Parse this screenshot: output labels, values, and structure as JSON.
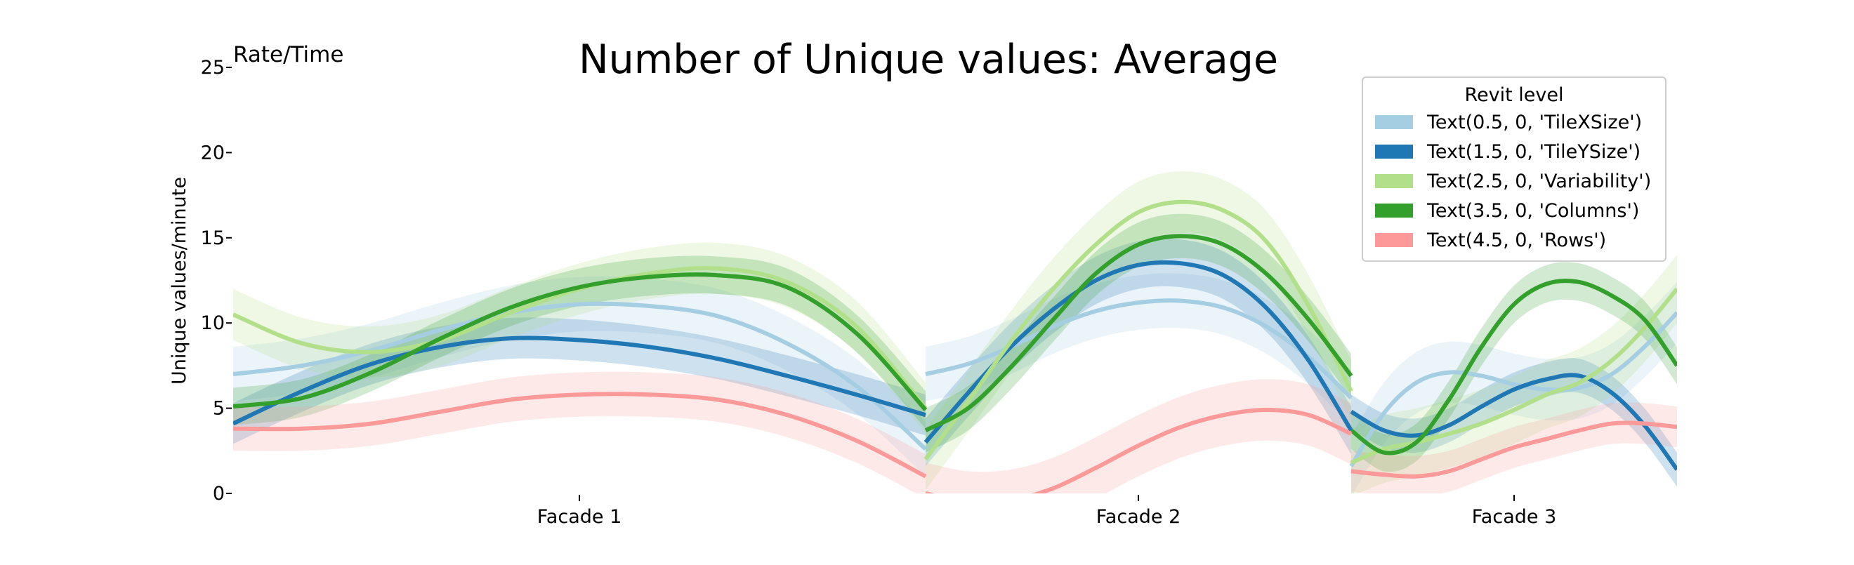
{
  "chart_data": {
    "type": "line",
    "title": "Number of Unique values: Average",
    "corner_label": "Rate/Time",
    "ylabel": "Unique values/minute",
    "xlabel": "",
    "ylim": [
      0,
      25
    ],
    "yticks": [
      0,
      5,
      10,
      15,
      20,
      25
    ],
    "segments": [
      {
        "label": "Facade 1",
        "x_range": [
          0,
          1
        ]
      },
      {
        "label": "Facade 2",
        "x_range": [
          1,
          2
        ]
      },
      {
        "label": "Facade 3",
        "x_range": [
          2,
          3
        ]
      }
    ],
    "legend": {
      "title": "Revit level",
      "placement": "top-right"
    },
    "grid": false,
    "series": [
      {
        "name": "Text(0.5, 0, 'TileXSize')",
        "color": "#a6cee3",
        "segments": [
          {
            "x": [
              0,
              0.1,
              0.2,
              0.3,
              0.4,
              0.5,
              0.6,
              0.7,
              0.8,
              0.9,
              1.0
            ],
            "y": [
              7.0,
              7.5,
              8.4,
              9.6,
              10.6,
              11.1,
              11.0,
              10.4,
              8.8,
              6.3,
              2.6
            ],
            "band": 1.6
          },
          {
            "x": [
              0,
              0.1,
              0.2,
              0.3,
              0.4,
              0.5,
              0.6,
              0.7,
              0.8,
              0.9,
              1.0
            ],
            "y": [
              7.0,
              7.6,
              8.6,
              9.8,
              10.7,
              11.2,
              11.3,
              10.9,
              9.8,
              8.0,
              5.6
            ],
            "band": 1.6
          },
          {
            "x": [
              0,
              0.1,
              0.2,
              0.3,
              0.4,
              0.5,
              0.6,
              0.7,
              0.8,
              0.9,
              1.0
            ],
            "y": [
              1.6,
              4.7,
              6.5,
              7.1,
              6.9,
              6.4,
              6.1,
              6.2,
              7.0,
              8.6,
              10.6
            ],
            "band": 1.8
          }
        ]
      },
      {
        "name": "Text(1.5, 0, 'TileYSize')",
        "color": "#1f78b4",
        "segments": [
          {
            "x": [
              0,
              0.1,
              0.2,
              0.3,
              0.4,
              0.5,
              0.6,
              0.7,
              0.8,
              0.9,
              1.0
            ],
            "y": [
              4.1,
              6.0,
              7.6,
              8.6,
              9.1,
              9.0,
              8.6,
              7.9,
              6.9,
              5.8,
              4.6
            ],
            "band": 1.2
          },
          {
            "x": [
              0,
              0.1,
              0.2,
              0.3,
              0.4,
              0.5,
              0.6,
              0.7,
              0.8,
              0.9,
              1.0
            ],
            "y": [
              3.0,
              5.9,
              8.6,
              10.8,
              12.5,
              13.4,
              13.5,
              12.8,
              10.9,
              7.8,
              3.7
            ],
            "band": 1.4
          },
          {
            "x": [
              0,
              0.1,
              0.2,
              0.3,
              0.4,
              0.5,
              0.6,
              0.7,
              0.8,
              0.9,
              1.0
            ],
            "y": [
              4.8,
              3.7,
              3.4,
              4.0,
              5.1,
              6.1,
              6.7,
              6.9,
              5.9,
              4.0,
              1.4
            ],
            "band": 1.0
          }
        ]
      },
      {
        "name": "Text(2.5, 0, 'Variability')",
        "color": "#b2df8a",
        "segments": [
          {
            "x": [
              0,
              0.1,
              0.2,
              0.3,
              0.4,
              0.5,
              0.6,
              0.7,
              0.8,
              0.9,
              1.0
            ],
            "y": [
              10.5,
              8.8,
              8.3,
              9.0,
              10.6,
              12.0,
              12.9,
              13.2,
              12.4,
              9.8,
              5.0
            ],
            "band": 1.5
          },
          {
            "x": [
              0,
              0.1,
              0.2,
              0.3,
              0.4,
              0.5,
              0.6,
              0.7,
              0.8,
              0.9,
              1.0
            ],
            "y": [
              2.0,
              5.4,
              8.9,
              12.0,
              14.6,
              16.5,
              17.1,
              16.6,
              14.8,
              11.0,
              6.0
            ],
            "band": 1.8
          },
          {
            "x": [
              0,
              0.1,
              0.2,
              0.3,
              0.4,
              0.5,
              0.6,
              0.7,
              0.8,
              0.9,
              1.0
            ],
            "y": [
              1.8,
              2.6,
              3.0,
              3.5,
              4.1,
              4.9,
              5.8,
              6.5,
              7.8,
              9.7,
              12.0
            ],
            "band": 2.0
          }
        ]
      },
      {
        "name": "Text(3.5, 0, 'Columns')",
        "color": "#33a02c",
        "segments": [
          {
            "x": [
              0,
              0.1,
              0.2,
              0.3,
              0.4,
              0.5,
              0.6,
              0.7,
              0.8,
              0.9,
              1.0
            ],
            "y": [
              5.1,
              5.6,
              7.1,
              9.1,
              10.9,
              12.1,
              12.7,
              12.8,
              12.1,
              9.4,
              4.9
            ],
            "band": 1.1
          },
          {
            "x": [
              0,
              0.1,
              0.2,
              0.3,
              0.4,
              0.5,
              0.6,
              0.7,
              0.8,
              0.9,
              1.0
            ],
            "y": [
              3.7,
              5.0,
              7.4,
              10.2,
              12.9,
              14.6,
              15.1,
              14.6,
              12.9,
              10.2,
              6.9
            ],
            "band": 1.3
          },
          {
            "x": [
              0,
              0.1,
              0.2,
              0.3,
              0.4,
              0.5,
              0.6,
              0.7,
              0.8,
              0.9,
              1.0
            ],
            "y": [
              3.7,
              2.4,
              3.0,
              5.5,
              8.6,
              11.1,
              12.3,
              12.4,
              11.6,
              10.2,
              7.5
            ],
            "band": 1.1
          }
        ]
      },
      {
        "name": "Text(4.5, 0, 'Rows')",
        "color": "#fb9a99",
        "segments": [
          {
            "x": [
              0,
              0.1,
              0.2,
              0.3,
              0.4,
              0.5,
              0.6,
              0.7,
              0.8,
              0.9,
              1.0
            ],
            "y": [
              3.8,
              3.8,
              4.1,
              4.8,
              5.5,
              5.8,
              5.8,
              5.5,
              4.6,
              3.1,
              1.0
            ],
            "band": 1.3
          },
          {
            "x": [
              0,
              0.1,
              0.2,
              0.3,
              0.4,
              0.5,
              0.6,
              0.7,
              0.8,
              0.9,
              1.0
            ],
            "y": [
              0.0,
              -0.5,
              -0.4,
              0.3,
              1.5,
              2.8,
              3.9,
              4.6,
              4.9,
              4.6,
              3.5
            ],
            "band": 1.8
          },
          {
            "x": [
              0,
              0.1,
              0.2,
              0.3,
              0.4,
              0.5,
              0.6,
              0.7,
              0.8,
              0.9,
              1.0
            ],
            "y": [
              1.3,
              1.1,
              1.0,
              1.3,
              2.0,
              2.7,
              3.2,
              3.7,
              4.1,
              4.1,
              3.9
            ],
            "band": 1.2
          }
        ]
      }
    ]
  }
}
